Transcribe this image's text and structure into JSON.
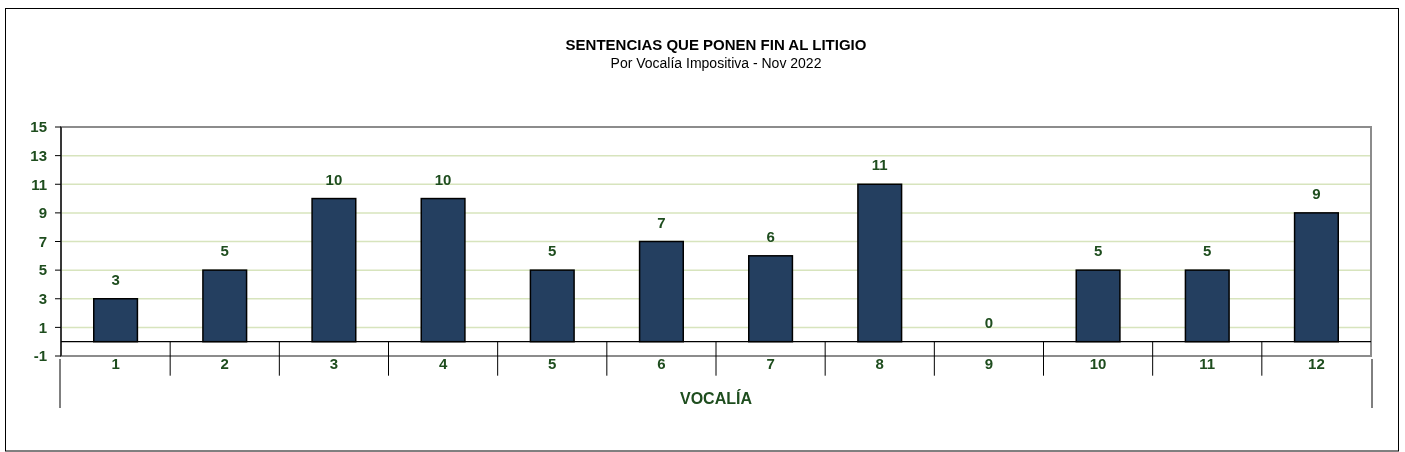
{
  "chart_data": {
    "type": "bar",
    "title": "SENTENCIAS QUE PONEN FIN AL LITIGIO",
    "subtitle": "Por Vocalía Impositiva - Nov 2022",
    "xlabel": "VOCALÍA",
    "categories": [
      "1",
      "2",
      "3",
      "4",
      "5",
      "6",
      "7",
      "8",
      "9",
      "10",
      "11",
      "12"
    ],
    "values": [
      3,
      5,
      10,
      10,
      5,
      7,
      6,
      11,
      0,
      5,
      5,
      9
    ],
    "color": "#243f60",
    "ylim": [
      -1,
      15
    ],
    "yticks": [
      -1,
      1,
      3,
      5,
      7,
      9,
      11,
      13,
      15
    ],
    "grid": "y",
    "data_labels": true
  }
}
